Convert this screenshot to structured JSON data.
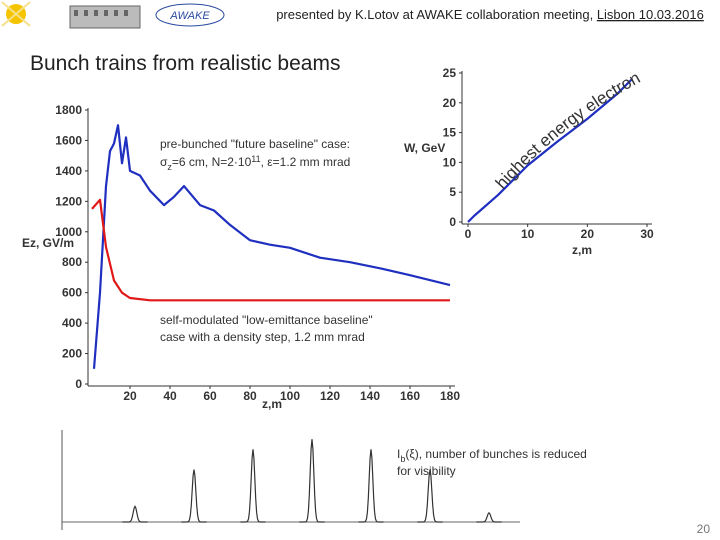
{
  "header": {
    "text": "presented by K.Lotov at AWAKE collaboration meeting, ",
    "link": "Lisbon 10.03.2016",
    "logo": "AWAKE"
  },
  "title": "Bunch trains from realistic beams",
  "page_number": "20",
  "chart_data": [
    {
      "type": "line",
      "y_label": "Ez, GV/m",
      "x_label": "z,m",
      "xlim": [
        0,
        180
      ],
      "ylim": [
        0,
        1800
      ],
      "xticks": [
        20,
        40,
        60,
        80,
        100,
        120,
        140,
        160,
        180
      ],
      "yticks": [
        0,
        200,
        400,
        600,
        800,
        1000,
        1200,
        1400,
        1600,
        1800
      ],
      "annotations": [
        {
          "lines": [
            "pre-bunched \"future baseline\" case:"
          ],
          "parts": [
            "σ",
            "z",
            "=6 cm, N=2·10",
            "11",
            ", ε=1.2 mm mrad"
          ]
        },
        {
          "lines": [
            "self-modulated \"low-emittance baseline\"",
            "case with a density step, 1.2 mm mrad"
          ]
        }
      ],
      "series": [
        {
          "color": "#1f2fbf",
          "x": [
            2,
            5,
            8,
            10,
            12,
            14,
            16,
            18,
            20,
            25,
            30,
            37,
            42,
            47,
            55,
            62,
            70,
            80,
            90,
            100,
            115,
            130,
            145,
            160,
            180
          ],
          "values": [
            100,
            600,
            1300,
            1530,
            1580,
            1700,
            1450,
            1620,
            1400,
            1370,
            1270,
            1175,
            1230,
            1300,
            1175,
            1140,
            1045,
            945,
            915,
            895,
            830,
            800,
            760,
            715,
            650
          ]
        },
        {
          "color": "#e01818",
          "x": [
            1,
            5,
            8,
            12,
            16,
            20,
            30,
            60,
            100,
            140,
            180
          ],
          "values": [
            1150,
            1210,
            900,
            680,
            600,
            565,
            550,
            550,
            550,
            550,
            550
          ]
        }
      ]
    },
    {
      "type": "line",
      "y_label": "W, GeV",
      "x_label": "z,m",
      "xlim": [
        0,
        30
      ],
      "ylim": [
        0,
        25
      ],
      "xticks": [
        0,
        10,
        20,
        30
      ],
      "yticks": [
        0,
        5,
        10,
        15,
        20,
        25
      ],
      "annotations": [
        {
          "lines": [
            "highest energy electron"
          ]
        }
      ],
      "series": [
        {
          "color": "#1f2fbf",
          "x": [
            0,
            1,
            5,
            10,
            15,
            20,
            25,
            27.5
          ],
          "values": [
            0,
            1,
            4.5,
            9.5,
            13.5,
            17.3,
            21.5,
            24
          ]
        }
      ]
    },
    {
      "type": "bunches",
      "ylim": [
        0,
        100
      ],
      "annotations": [
        {
          "parts": [
            "I",
            "b",
            "(ξ), number of bunches is reduced"
          ],
          "lines": [
            "for visibility"
          ]
        }
      ],
      "values": [
        17,
        57,
        79,
        90,
        79,
        57,
        10
      ],
      "color": "#333333"
    }
  ]
}
